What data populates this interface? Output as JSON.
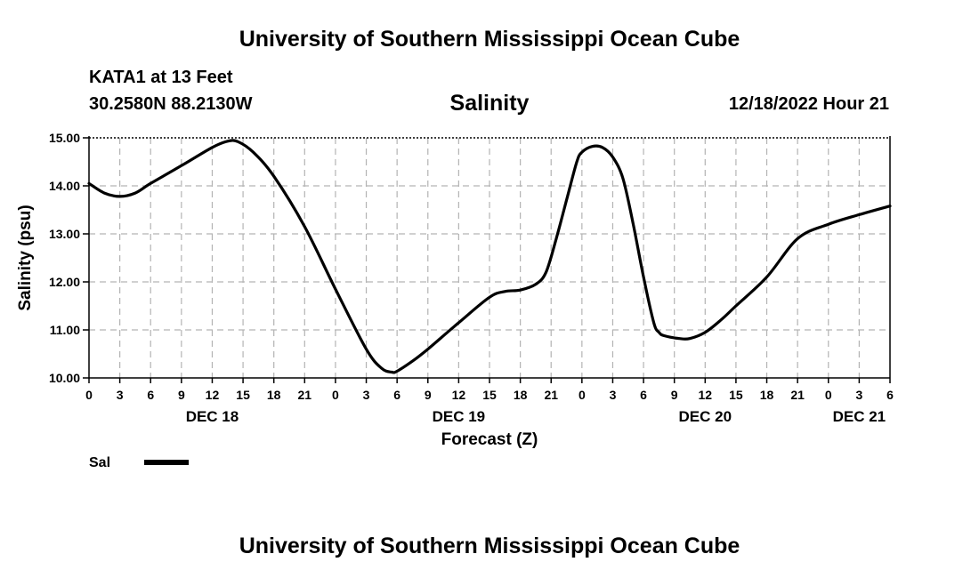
{
  "header": {
    "title": "University of Southern Mississippi Ocean Cube",
    "station": "KATA1 at 13 Feet",
    "coordinates": "30.2580N  88.2130W",
    "variable": "Salinity",
    "datetime": "12/18/2022 Hour 21"
  },
  "footer": {
    "title": "University of Southern Mississippi Ocean Cube"
  },
  "chart_data": {
    "type": "line",
    "xlabel": "Forecast (Z)",
    "ylabel": "Salinity (psu)",
    "ylim": [
      10.0,
      15.0
    ],
    "yticks": [
      "10.00",
      "11.00",
      "12.00",
      "13.00",
      "14.00",
      "15.00"
    ],
    "xlim": [
      0,
      78
    ],
    "xtick_labels": [
      "0",
      "3",
      "6",
      "9",
      "12",
      "15",
      "18",
      "21",
      "0",
      "3",
      "6",
      "9",
      "12",
      "15",
      "18",
      "21",
      "0",
      "3",
      "6",
      "9",
      "12",
      "15",
      "18",
      "21",
      "0",
      "3",
      "6"
    ],
    "day_labels": [
      {
        "label": "DEC 18",
        "hour": 12
      },
      {
        "label": "DEC 19",
        "hour": 36
      },
      {
        "label": "DEC 20",
        "hour": 60
      },
      {
        "label": "DEC 21",
        "hour": 75
      }
    ],
    "grid": true,
    "legend": "bottom-left",
    "series": [
      {
        "name": "Sal",
        "color": "#000000",
        "x": [
          0,
          1.5,
          3,
          4.5,
          6,
          9,
          12,
          13.5,
          14.5,
          16,
          18,
          21,
          24,
          27,
          28.5,
          29.5,
          30,
          31.5,
          33,
          36,
          39,
          40.5,
          42,
          43.5,
          44.5,
          45.5,
          46.5,
          47.5,
          48,
          49,
          50,
          51,
          52,
          53,
          54,
          55,
          55.5,
          56,
          57.5,
          58.5,
          60,
          61.5,
          63,
          66,
          69,
          72,
          75,
          78
        ],
        "y": [
          14.05,
          13.85,
          13.78,
          13.85,
          14.05,
          14.42,
          14.8,
          14.93,
          14.92,
          14.7,
          14.2,
          13.15,
          11.85,
          10.6,
          10.2,
          10.12,
          10.14,
          10.35,
          10.6,
          11.15,
          11.68,
          11.8,
          11.83,
          11.95,
          12.2,
          12.9,
          13.7,
          14.5,
          14.7,
          14.82,
          14.8,
          14.6,
          14.15,
          13.2,
          12.1,
          11.15,
          10.95,
          10.88,
          10.82,
          10.82,
          10.95,
          11.2,
          11.5,
          12.1,
          12.9,
          13.2,
          13.4,
          13.58
        ]
      }
    ]
  }
}
